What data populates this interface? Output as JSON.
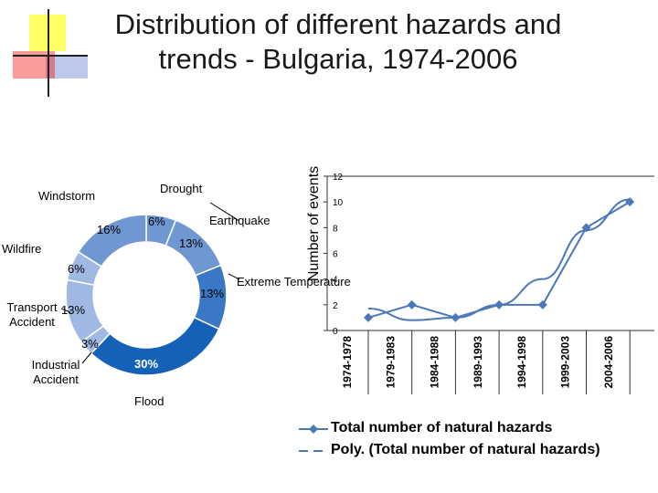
{
  "title": "Distribution of different hazards and trends - Bulgaria, 1974-2006",
  "colors": {
    "donut_light": "#9fb9e3",
    "donut_mid": "#6f98d2",
    "donut_dark": "#3a78c6",
    "donut_deep": "#1561b8",
    "line": "#4a78b8",
    "deco_yellow": "#ffff66",
    "deco_red": "#ee2222",
    "deco_blue": "#8899dd"
  },
  "chart_data": [
    {
      "type": "pie",
      "variant": "donut",
      "title": "",
      "slices": [
        {
          "label": "Drought",
          "value": 6,
          "pct_label": "6%"
        },
        {
          "label": "Earthquake",
          "value": 13,
          "pct_label": "13%"
        },
        {
          "label": "Extreme Temperature",
          "value": 13,
          "pct_label": "13%"
        },
        {
          "label": "Flood",
          "value": 30,
          "pct_label": "30%"
        },
        {
          "label": "Industrial Accident",
          "value": 3,
          "pct_label": "3%"
        },
        {
          "label": "Transport Accident",
          "value": 13,
          "pct_label": "13%"
        },
        {
          "label": "Wildfire",
          "value": 6,
          "pct_label": "6%"
        },
        {
          "label": "Windstorm",
          "value": 16,
          "pct_label": "16%"
        }
      ]
    },
    {
      "type": "line",
      "title": "",
      "xlabel": "",
      "ylabel": "Number of events",
      "categories": [
        "1974-1978",
        "1979-1983",
        "1984-1988",
        "1989-1993",
        "1994-1998",
        "1999-2003",
        "2004-2006"
      ],
      "ylim": [
        0,
        12
      ],
      "yticks": [
        0,
        2,
        4,
        6,
        8,
        10,
        12
      ],
      "grid": false,
      "series": [
        {
          "name": "Total number of natural hazards",
          "values": [
            1,
            2,
            1,
            2,
            2,
            8,
            10
          ]
        },
        {
          "name": "Poly. (Total number of natural hazards)",
          "values": [
            1.7,
            0.8,
            1.0,
            2.0,
            4.0,
            7.8,
            10.2
          ]
        }
      ],
      "legend": "bottom"
    }
  ]
}
